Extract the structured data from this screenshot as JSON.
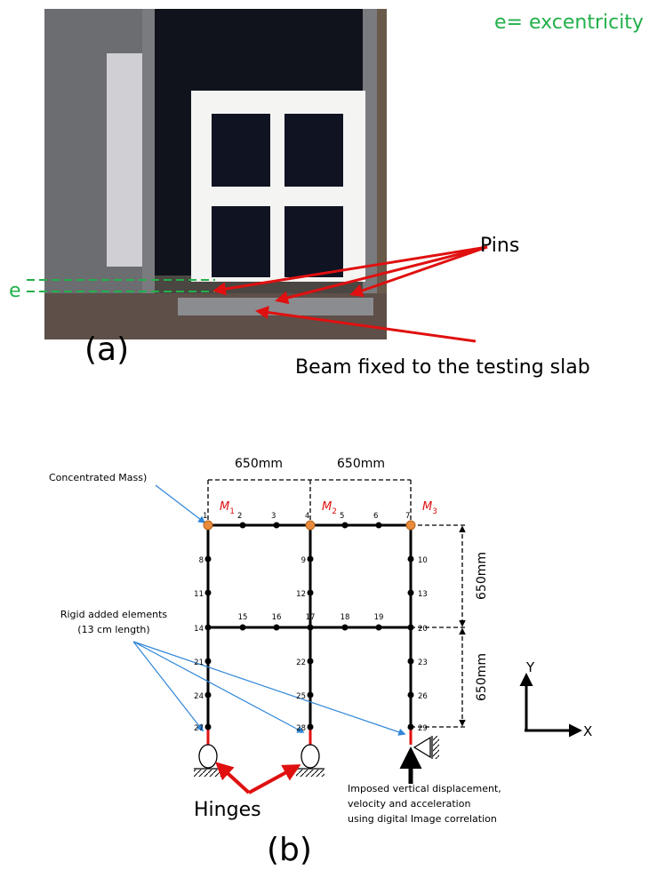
{
  "panel_a": {
    "label": "(a)",
    "excentricity_note": "e= excentricity",
    "e_label": "e",
    "pins_label": "Pins",
    "beam_label": "Beam fixed to the testing slab"
  },
  "panel_b": {
    "label": "(b)",
    "concentrated_mass": "Concentrated Mass)",
    "rigid_elements": [
      "Rigid added elements",
      "(13 cm length)"
    ],
    "span_top": [
      "650mm",
      "650mm"
    ],
    "span_right": [
      "650mm",
      "650mm"
    ],
    "masses": [
      {
        "symbol": "M",
        "index": "1"
      },
      {
        "symbol": "M",
        "index": "2"
      },
      {
        "symbol": "M",
        "index": "3"
      }
    ],
    "nodes": [
      1,
      2,
      3,
      4,
      5,
      6,
      7,
      8,
      9,
      10,
      11,
      12,
      13,
      14,
      15,
      16,
      17,
      18,
      19,
      20,
      21,
      22,
      23,
      24,
      25,
      26,
      27,
      28,
      29
    ],
    "hinges_label": "Hinges",
    "imposed_note": [
      "Imposed  vertical displacement,",
      "velocity and acceleration",
      "using digital Image correlation"
    ],
    "axis_y": "Y",
    "axis_x": "X"
  }
}
